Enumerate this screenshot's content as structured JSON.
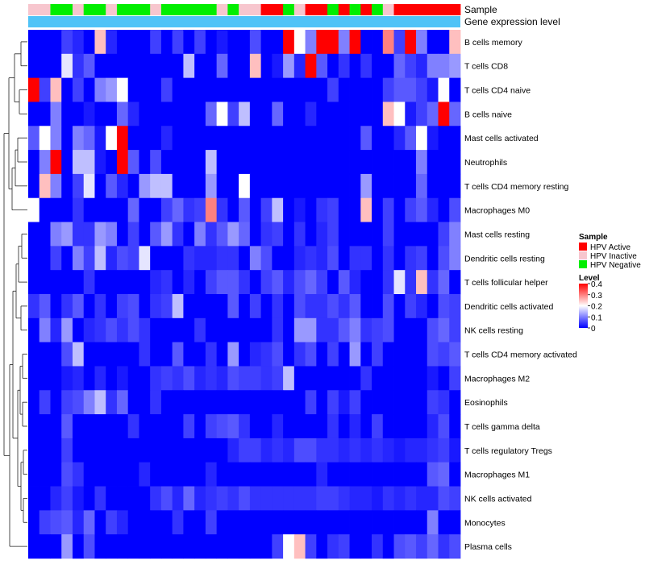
{
  "chart_data": {
    "type": "heatmap",
    "annotation_tracks": [
      {
        "name": "Sample"
      },
      {
        "name": "Gene expression level"
      }
    ],
    "gene_track_color": "#4FC3F7",
    "sample_groups": [
      "HPV Inactive",
      "HPV Inactive",
      "HPV Negative",
      "HPV Negative",
      "HPV Inactive",
      "HPV Negative",
      "HPV Negative",
      "HPV Inactive",
      "HPV Negative",
      "HPV Negative",
      "HPV Negative",
      "HPV Inactive",
      "HPV Negative",
      "HPV Negative",
      "HPV Negative",
      "HPV Negative",
      "HPV Negative",
      "HPV Inactive",
      "HPV Negative",
      "HPV Inactive",
      "HPV Inactive",
      "HPV Active",
      "HPV Active",
      "HPV Negative",
      "HPV Inactive",
      "HPV Active",
      "HPV Active",
      "HPV Negative",
      "HPV Active",
      "HPV Negative",
      "HPV Active",
      "HPV Negative",
      "HPV Inactive",
      "HPV Active",
      "HPV Active",
      "HPV Active",
      "HPV Active",
      "HPV Active",
      "HPV Active"
    ],
    "rows": [
      "B cells memory",
      "T cells CD8",
      "T cells CD4 naive",
      "B cells naive",
      "Mast cells activated",
      "Neutrophils",
      "T cells CD4 memory resting",
      "Macrophages M0",
      "Mast cells resting",
      "Dendritic cells resting",
      "T cells follicular helper",
      "Dendritic cells activated",
      "NK cells resting",
      "T cells CD4 memory activated",
      "Macrophages M2",
      "Eosinophils",
      "T cells gamma delta",
      "T cells regulatory  Tregs",
      "Macrophages M1",
      "NK cells activated",
      "Monocytes",
      "Plasma cells"
    ],
    "values": [
      [
        0,
        0,
        0,
        0.05,
        0.03,
        0,
        0.25,
        0.03,
        0,
        0,
        0,
        0.05,
        0,
        0.05,
        0,
        0.05,
        0,
        0.02,
        0,
        0,
        0.06,
        0,
        0,
        0.4,
        0.2,
        0.1,
        0.4,
        0.4,
        0.1,
        0.4,
        0,
        0,
        0.3,
        0.05,
        0.4,
        0.1,
        0,
        0,
        0.25
      ],
      [
        0,
        0,
        0,
        0.18,
        0.04,
        0.07,
        0,
        0,
        0,
        0,
        0,
        0,
        0,
        0,
        0.15,
        0,
        0,
        0.08,
        0,
        0,
        0.25,
        0,
        0.02,
        0.12,
        0.03,
        0.4,
        0.07,
        0,
        0.04,
        0,
        0.04,
        0,
        0,
        0.08,
        0.05,
        0.03,
        0.1,
        0.1,
        0.12
      ],
      [
        0.4,
        0.05,
        0.25,
        0,
        0.05,
        0,
        0.1,
        0.12,
        0.2,
        0,
        0,
        0,
        0.05,
        0,
        0,
        0,
        0,
        0,
        0,
        0,
        0,
        0,
        0,
        0,
        0,
        0,
        0,
        0.05,
        0,
        0,
        0,
        0,
        0.05,
        0.07,
        0.07,
        0.05,
        0.02,
        0.2,
        0
      ],
      [
        0,
        0,
        0.1,
        0,
        0,
        0.02,
        0,
        0,
        0.08,
        0.03,
        0,
        0,
        0,
        0,
        0,
        0,
        0.08,
        0.2,
        0.05,
        0.15,
        0,
        0,
        0.08,
        0,
        0,
        0.03,
        0,
        0,
        0,
        0,
        0,
        0,
        0.25,
        0.2,
        0.02,
        0.05,
        0.08,
        0.4,
        0.08
      ],
      [
        0.07,
        0.2,
        0.1,
        0,
        0.1,
        0.08,
        0.02,
        0.2,
        0.4,
        0,
        0,
        0,
        0.03,
        0,
        0,
        0,
        0,
        0,
        0,
        0,
        0,
        0,
        0,
        0,
        0,
        0,
        0,
        0,
        0,
        0,
        0.07,
        0,
        0,
        0.03,
        0.07,
        0.2,
        0.02,
        0,
        0
      ],
      [
        0,
        0.1,
        0.4,
        0,
        0.15,
        0.15,
        0.02,
        0,
        0.4,
        0.07,
        0,
        0.06,
        0,
        0,
        0,
        0,
        0.15,
        0,
        0,
        0,
        0,
        0,
        0,
        0,
        0,
        0,
        0,
        0,
        0,
        0,
        0,
        0,
        0,
        0,
        0,
        0.1,
        0,
        0,
        0
      ],
      [
        0,
        0.25,
        0.1,
        0,
        0.05,
        0.18,
        0,
        0.07,
        0.03,
        0,
        0.12,
        0.15,
        0.15,
        0,
        0,
        0,
        0.12,
        0,
        0,
        0.2,
        0,
        0,
        0,
        0,
        0,
        0,
        0,
        0,
        0,
        0,
        0.12,
        0,
        0,
        0,
        0,
        0.08,
        0,
        0,
        0
      ],
      [
        0.2,
        0,
        0,
        0,
        0.04,
        0,
        0,
        0,
        0,
        0.08,
        0,
        0,
        0.05,
        0.08,
        0.04,
        0.05,
        0.3,
        0.04,
        0,
        0.07,
        0,
        0.05,
        0.15,
        0,
        0.02,
        0,
        0.04,
        0.05,
        0,
        0,
        0.25,
        0,
        0.05,
        0,
        0.05,
        0.07,
        0.03,
        0,
        0.06
      ],
      [
        0,
        0,
        0.1,
        0.12,
        0.04,
        0.04,
        0.12,
        0.1,
        0,
        0.05,
        0,
        0.07,
        0.12,
        0.04,
        0,
        0.1,
        0.04,
        0.07,
        0.12,
        0.08,
        0,
        0.04,
        0.05,
        0,
        0.04,
        0,
        0.03,
        0.05,
        0,
        0,
        0,
        0,
        0.05,
        0,
        0,
        0,
        0,
        0.05,
        0.1
      ],
      [
        0,
        0,
        0.05,
        0,
        0.1,
        0.05,
        0.15,
        0.03,
        0.06,
        0.05,
        0.18,
        0,
        0,
        0,
        0.04,
        0.03,
        0.03,
        0.04,
        0.04,
        0,
        0.1,
        0.06,
        0,
        0,
        0.03,
        0.04,
        0.03,
        0.06,
        0,
        0.04,
        0.04,
        0,
        0.04,
        0,
        0.04,
        0.05,
        0,
        0.06,
        0.1
      ],
      [
        0,
        0,
        0,
        0,
        0,
        0.04,
        0,
        0,
        0,
        0,
        0,
        0.03,
        0.04,
        0,
        0.03,
        0,
        0.05,
        0.07,
        0.07,
        0.04,
        0,
        0.05,
        0.07,
        0.03,
        0.06,
        0.08,
        0.05,
        0,
        0.07,
        0.03,
        0,
        0,
        0.04,
        0.18,
        0.04,
        0.25,
        0.04,
        0.08,
        0
      ],
      [
        0.04,
        0.07,
        0,
        0.04,
        0.07,
        0,
        0.04,
        0,
        0.05,
        0.06,
        0,
        0.04,
        0.05,
        0.15,
        0,
        0,
        0,
        0,
        0.07,
        0,
        0.05,
        0,
        0.04,
        0,
        0.06,
        0.04,
        0.04,
        0.06,
        0.04,
        0.07,
        0,
        0,
        0.06,
        0,
        0.05,
        0.03,
        0,
        0.06,
        0.05
      ],
      [
        0,
        0.1,
        0.03,
        0.12,
        0,
        0.03,
        0.04,
        0.06,
        0.04,
        0.06,
        0.04,
        0,
        0,
        0,
        0,
        0.04,
        0,
        0,
        0,
        0,
        0,
        0,
        0.04,
        0,
        0.12,
        0.12,
        0.04,
        0.04,
        0.07,
        0.1,
        0.04,
        0.05,
        0.06,
        0,
        0,
        0,
        0.06,
        0.08,
        0.05
      ],
      [
        0,
        0,
        0,
        0.06,
        0.15,
        0,
        0,
        0,
        0,
        0,
        0.04,
        0,
        0,
        0.07,
        0,
        0,
        0.04,
        0,
        0.12,
        0,
        0.03,
        0.04,
        0.06,
        0,
        0.04,
        0.06,
        0,
        0.05,
        0,
        0.12,
        0,
        0.05,
        0,
        0,
        0,
        0,
        0.06,
        0.05,
        0.07
      ],
      [
        0,
        0,
        0,
        0.02,
        0.03,
        0,
        0.03,
        0,
        0.02,
        0,
        0,
        0.04,
        0.05,
        0.04,
        0.06,
        0.03,
        0.04,
        0.03,
        0.06,
        0.05,
        0.05,
        0.04,
        0.05,
        0.15,
        0,
        0,
        0,
        0,
        0,
        0,
        0.04,
        0,
        0,
        0,
        0,
        0,
        0.02,
        0,
        0.05
      ],
      [
        0,
        0.05,
        0,
        0.05,
        0.06,
        0.1,
        0.15,
        0.04,
        0.08,
        0,
        0,
        0.04,
        0,
        0,
        0,
        0,
        0,
        0,
        0,
        0,
        0,
        0,
        0,
        0,
        0,
        0.05,
        0,
        0.05,
        0.02,
        0.05,
        0,
        0,
        0,
        0,
        0,
        0,
        0.05,
        0.04,
        0
      ],
      [
        0,
        0,
        0,
        0.07,
        0,
        0,
        0,
        0,
        0,
        0.04,
        0,
        0,
        0,
        0,
        0.05,
        0,
        0.05,
        0.06,
        0.07,
        0.04,
        0,
        0,
        0.03,
        0,
        0,
        0,
        0,
        0.04,
        0,
        0.03,
        0,
        0.05,
        0,
        0,
        0,
        0,
        0.03,
        0.06,
        0
      ],
      [
        0,
        0,
        0,
        0.05,
        0,
        0,
        0,
        0,
        0,
        0,
        0,
        0,
        0,
        0,
        0,
        0,
        0,
        0,
        0.03,
        0.05,
        0.05,
        0.03,
        0.04,
        0.03,
        0.06,
        0.06,
        0.04,
        0.04,
        0.03,
        0.04,
        0.03,
        0.04,
        0.03,
        0.02,
        0.03,
        0.03,
        0.04,
        0.05,
        0.02
      ],
      [
        0,
        0,
        0,
        0.06,
        0.04,
        0,
        0,
        0,
        0,
        0,
        0.03,
        0,
        0,
        0,
        0,
        0,
        0.03,
        0,
        0,
        0,
        0,
        0,
        0,
        0,
        0,
        0,
        0.03,
        0,
        0,
        0,
        0,
        0,
        0,
        0,
        0,
        0,
        0.07,
        0.08,
        0
      ],
      [
        0,
        0,
        0.03,
        0.05,
        0.02,
        0,
        0.04,
        0,
        0,
        0,
        0,
        0.04,
        0.06,
        0.03,
        0.08,
        0.03,
        0.04,
        0.05,
        0.04,
        0.06,
        0.04,
        0.04,
        0.04,
        0.04,
        0.04,
        0.04,
        0.05,
        0.05,
        0.04,
        0.03,
        0.03,
        0.02,
        0.04,
        0.03,
        0.04,
        0.03,
        0.03,
        0.06,
        0.05
      ],
      [
        0,
        0.05,
        0.06,
        0.07,
        0.03,
        0.08,
        0,
        0.05,
        0.03,
        0,
        0,
        0,
        0,
        0.04,
        0,
        0,
        0.05,
        0,
        0,
        0,
        0,
        0,
        0,
        0,
        0,
        0,
        0,
        0,
        0,
        0,
        0,
        0,
        0,
        0,
        0,
        0,
        0.1,
        0,
        0
      ],
      [
        0,
        0,
        0,
        0.12,
        0,
        0.06,
        0,
        0,
        0,
        0,
        0,
        0,
        0,
        0,
        0,
        0,
        0,
        0,
        0,
        0,
        0,
        0,
        0.05,
        0.2,
        0.25,
        0.05,
        0,
        0.04,
        0.05,
        0,
        0,
        0.04,
        0,
        0.06,
        0.07,
        0.05,
        0.08,
        0.04,
        0.06
      ]
    ],
    "legend": [
      {
        "title": "Sample",
        "entries": [
          {
            "label": "HPV Active",
            "color": "#FF0000"
          },
          {
            "label": "HPV Inactive",
            "color": "#F7C6CE"
          },
          {
            "label": "HPV Negative",
            "color": "#00EE00"
          }
        ]
      },
      {
        "title": "Level",
        "scale": {
          "min": 0,
          "max": 0.4,
          "ticks": [
            "0.4",
            "0.3",
            "0.2",
            "0.1",
            "0"
          ],
          "colors": [
            "#0000FF",
            "#FFFFFF",
            "#FF0000"
          ]
        }
      }
    ],
    "legend_position": "right",
    "grid": false
  }
}
